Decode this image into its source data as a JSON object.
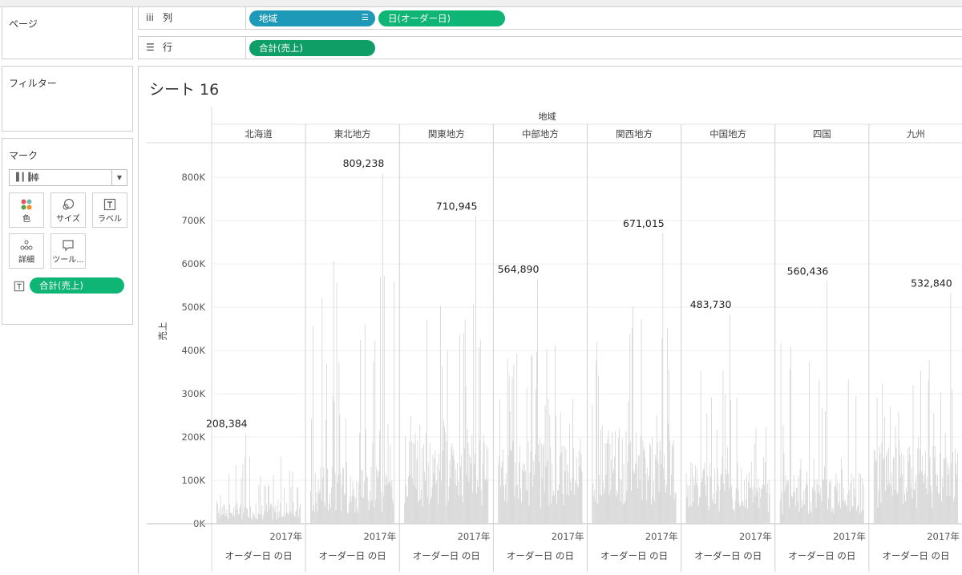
{
  "pages_panel": {
    "title": "ページ"
  },
  "filters_panel": {
    "title": "フィルター"
  },
  "marks_panel": {
    "title": "マーク",
    "mark_type": "棒",
    "buttons": [
      {
        "label": "色",
        "icon": "color-dots-icon"
      },
      {
        "label": "サイズ",
        "icon": "size-icon"
      },
      {
        "label": "ラベル",
        "icon": "label-icon"
      },
      {
        "label": "詳細",
        "icon": "detail-icon"
      },
      {
        "label": "ツール...",
        "icon": "tooltip-icon"
      }
    ],
    "label_pill": "合計(売上)"
  },
  "columns_shelf": {
    "label": "列",
    "pills": [
      "地域",
      "日(オーダー日)"
    ]
  },
  "rows_shelf": {
    "label": "行",
    "pills": [
      "合計(売上)"
    ]
  },
  "sheet": {
    "title": "シート 16"
  },
  "colors": {
    "bar": "#d4d4d4",
    "pill_dimension": "#1f99b8",
    "pill_measure": "#0fb575"
  },
  "chart_data": {
    "type": "bar",
    "header_title": "地域",
    "ylabel": "売上",
    "ylim": [
      0,
      880000
    ],
    "yticks": [
      0,
      100000,
      200000,
      300000,
      400000,
      500000,
      600000,
      700000,
      800000
    ],
    "ytick_labels": [
      "0K",
      "100K",
      "200K",
      "300K",
      "400K",
      "500K",
      "600K",
      "700K",
      "800K"
    ],
    "x_year_label": "2017年",
    "x_axis_title": "オーダー日 の日",
    "panels": [
      {
        "region": "北海道",
        "max": 208384,
        "max_label": "208,384",
        "max_pos": 0.35,
        "base": 45000
      },
      {
        "region": "東北地方",
        "max": 809238,
        "max_label": "809,238",
        "max_pos": 0.86,
        "base": 120000
      },
      {
        "region": "関東地方",
        "max": 710945,
        "max_label": "710,945",
        "max_pos": 0.85,
        "base": 190000
      },
      {
        "region": "中部地方",
        "max": 564890,
        "max_label": "564,890",
        "max_pos": 0.47,
        "base": 180000
      },
      {
        "region": "関西地方",
        "max": 671015,
        "max_label": "671,015",
        "max_pos": 0.84,
        "base": 200000
      },
      {
        "region": "中国地方",
        "max": 483730,
        "max_label": "483,730",
        "max_pos": 0.52,
        "base": 130000
      },
      {
        "region": "四国",
        "max": 560436,
        "max_label": "560,436",
        "max_pos": 0.56,
        "base": 110000
      },
      {
        "region": "九州",
        "max": 532840,
        "max_label": "532,840",
        "max_pos": 0.92,
        "base": 170000
      }
    ]
  }
}
